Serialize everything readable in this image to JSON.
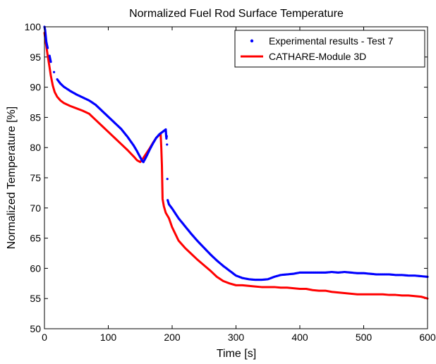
{
  "chart_data": {
    "type": "line",
    "title": "Normalized Fuel Rod Surface Temperature",
    "xlabel": "Time [s]",
    "ylabel": "Normalized Temperature [%]",
    "xlim": [
      0,
      600
    ],
    "ylim": [
      50,
      100
    ],
    "x_ticks": [
      0,
      100,
      200,
      300,
      400,
      500,
      600
    ],
    "y_ticks": [
      50,
      55,
      60,
      65,
      70,
      75,
      80,
      85,
      90,
      95,
      100
    ],
    "x_tick_labels": [
      "0",
      "100",
      "200",
      "300",
      "400",
      "500",
      "600"
    ],
    "y_tick_labels": [
      "50",
      "55",
      "60",
      "65",
      "70",
      "75",
      "80",
      "85",
      "90",
      "95",
      "100"
    ],
    "grid": false,
    "legend_position": "top-right",
    "series": [
      {
        "name": "Experimental results - Test 7",
        "style": "dots",
        "color": "#0000ff",
        "x": [
          0,
          1,
          2,
          3,
          5,
          8,
          10,
          15,
          20,
          25,
          30,
          40,
          50,
          60,
          70,
          80,
          90,
          100,
          110,
          120,
          130,
          140,
          145,
          150,
          153,
          155,
          157,
          160,
          165,
          170,
          175,
          180,
          185,
          190,
          190.5,
          191,
          191.5,
          192,
          192.5,
          193,
          195,
          200,
          210,
          220,
          230,
          240,
          250,
          260,
          270,
          280,
          290,
          300,
          310,
          320,
          330,
          340,
          350,
          360,
          370,
          380,
          390,
          400,
          410,
          420,
          430,
          440,
          450,
          460,
          470,
          480,
          490,
          500,
          510,
          520,
          530,
          540,
          550,
          560,
          570,
          580,
          590,
          600
        ],
        "y": [
          100,
          99.5,
          98.5,
          97.5,
          96.5,
          95.2,
          94.2,
          92.5,
          91.3,
          90.6,
          90.1,
          89.4,
          88.8,
          88.3,
          87.8,
          87.1,
          86.1,
          85.1,
          84.1,
          83.1,
          81.8,
          80.3,
          79.4,
          78.4,
          77.8,
          77.6,
          78.0,
          78.6,
          79.7,
          80.7,
          81.6,
          82.2,
          82.6,
          83.0,
          82.1,
          81.5,
          81.9,
          80.5,
          74.8,
          71.3,
          70.6,
          69.9,
          68.3,
          67.0,
          65.7,
          64.5,
          63.4,
          62.3,
          61.3,
          60.4,
          59.6,
          58.8,
          58.4,
          58.2,
          58.1,
          58.1,
          58.2,
          58.6,
          58.9,
          59.0,
          59.1,
          59.3,
          59.3,
          59.3,
          59.3,
          59.3,
          59.4,
          59.3,
          59.4,
          59.3,
          59.2,
          59.2,
          59.1,
          59.0,
          59.0,
          59.0,
          58.9,
          58.9,
          58.8,
          58.8,
          58.7,
          58.6
        ]
      },
      {
        "name": "CATHARE-Module 3D",
        "style": "line",
        "color": "#ff0000",
        "x": [
          0,
          2,
          5,
          8,
          10,
          13,
          16,
          20,
          25,
          30,
          40,
          50,
          60,
          70,
          80,
          90,
          100,
          110,
          120,
          130,
          140,
          145,
          150,
          155,
          160,
          165,
          170,
          175,
          180,
          182,
          183,
          184,
          185,
          187,
          190,
          195,
          200,
          210,
          220,
          230,
          240,
          250,
          260,
          270,
          280,
          290,
          300,
          310,
          320,
          330,
          340,
          350,
          360,
          370,
          380,
          390,
          400,
          410,
          420,
          430,
          440,
          450,
          460,
          470,
          480,
          490,
          500,
          510,
          520,
          530,
          540,
          550,
          560,
          570,
          580,
          590,
          600
        ],
        "y": [
          99,
          97.5,
          95.3,
          93.3,
          91.9,
          90.3,
          89.2,
          88.4,
          87.8,
          87.4,
          86.9,
          86.5,
          86.1,
          85.6,
          84.6,
          83.6,
          82.6,
          81.6,
          80.6,
          79.6,
          78.5,
          77.9,
          77.6,
          78.3,
          79.1,
          79.9,
          80.8,
          81.6,
          82.1,
          82.2,
          80,
          77,
          71.5,
          70.3,
          69.2,
          68.3,
          66.8,
          64.6,
          63.4,
          62.4,
          61.4,
          60.5,
          59.6,
          58.6,
          57.9,
          57.5,
          57.2,
          57.2,
          57.1,
          57.0,
          56.9,
          56.9,
          56.9,
          56.8,
          56.8,
          56.7,
          56.6,
          56.6,
          56.4,
          56.3,
          56.3,
          56.1,
          56.0,
          55.9,
          55.8,
          55.7,
          55.7,
          55.7,
          55.7,
          55.7,
          55.6,
          55.6,
          55.5,
          55.5,
          55.4,
          55.3,
          55.0
        ]
      }
    ]
  }
}
